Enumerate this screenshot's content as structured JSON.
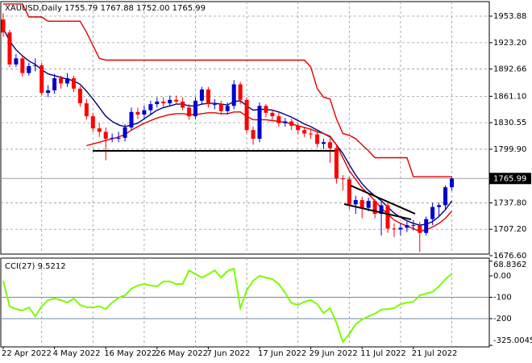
{
  "chart_data": [
    {
      "type": "candlestick",
      "title": "XAUUSD,Daily  1755.79 1767.88 1752.00 1765.99",
      "categories": [
        "22 Apr 2022",
        null,
        null,
        null,
        null,
        null,
        null,
        null,
        "4 May 2022",
        null,
        null,
        null,
        null,
        null,
        null,
        null,
        "16 May 2022",
        null,
        null,
        null,
        null,
        null,
        null,
        null,
        "26 May 2022",
        null,
        null,
        null,
        null,
        null,
        null,
        null,
        "7 Jun 2022",
        null,
        null,
        null,
        null,
        null,
        null,
        null,
        "17 Jun 2022",
        null,
        null,
        null,
        null,
        null,
        null,
        null,
        "29 Jun 2022",
        null,
        null,
        null,
        null,
        null,
        null,
        null,
        "11 Jul 2022",
        null,
        null,
        null,
        null,
        null,
        null,
        null,
        "21 Jul 2022",
        null,
        null,
        null,
        null,
        null,
        null
      ],
      "open": [
        1950,
        1935,
        1898,
        1905,
        1888,
        1896,
        1897,
        1865,
        1868,
        1882,
        1876,
        1882,
        1870,
        1853,
        1838,
        1824,
        1820,
        1812,
        1813,
        1813,
        1825,
        1843,
        1840,
        1845,
        1852,
        1855,
        1853,
        1857,
        1855,
        1848,
        1838,
        1856,
        1869,
        1852,
        1852,
        1844,
        1850,
        1875,
        1857,
        1822,
        1812,
        1850,
        1842,
        1838,
        1830,
        1832,
        1827,
        1822,
        1818,
        1817,
        1806,
        1808,
        1801,
        1766,
        1765,
        1736,
        1741,
        1732,
        1740,
        1725,
        1735,
        1708,
        1707,
        1709,
        1712,
        1712,
        1703,
        1719,
        1733,
        1735,
        1755.79
      ],
      "high": [
        1957,
        1938,
        1910,
        1908,
        1900,
        1905,
        1900,
        1874,
        1887,
        1885,
        1888,
        1885,
        1873,
        1858,
        1842,
        1830,
        1825,
        1818,
        1820,
        1829,
        1848,
        1848,
        1850,
        1856,
        1860,
        1860,
        1862,
        1862,
        1860,
        1852,
        1860,
        1872,
        1872,
        1858,
        1856,
        1854,
        1880,
        1878,
        1860,
        1826,
        1854,
        1852,
        1846,
        1842,
        1836,
        1835,
        1830,
        1826,
        1824,
        1820,
        1812,
        1812,
        1805,
        1770,
        1768,
        1746,
        1745,
        1744,
        1742,
        1739,
        1738,
        1714,
        1714,
        1716,
        1718,
        1716,
        1722,
        1738,
        1738,
        1758,
        1767.88
      ],
      "low": [
        1930,
        1895,
        1895,
        1884,
        1885,
        1890,
        1862,
        1860,
        1864,
        1870,
        1872,
        1866,
        1849,
        1834,
        1820,
        1814,
        1787,
        1808,
        1808,
        1809,
        1822,
        1835,
        1836,
        1840,
        1848,
        1848,
        1850,
        1852,
        1845,
        1834,
        1835,
        1852,
        1848,
        1846,
        1840,
        1840,
        1846,
        1852,
        1818,
        1805,
        1808,
        1837,
        1834,
        1826,
        1826,
        1822,
        1817,
        1814,
        1812,
        1802,
        1800,
        1784,
        1760,
        1752,
        1730,
        1725,
        1720,
        1728,
        1720,
        1700,
        1703,
        1698,
        1700,
        1704,
        1706,
        1681,
        1700,
        1712,
        1722,
        1730,
        1752.0
      ],
      "close": [
        1935,
        1898,
        1905,
        1888,
        1896,
        1897,
        1865,
        1868,
        1882,
        1876,
        1882,
        1870,
        1853,
        1838,
        1824,
        1820,
        1812,
        1813,
        1813,
        1825,
        1843,
        1840,
        1845,
        1852,
        1855,
        1853,
        1857,
        1855,
        1848,
        1838,
        1856,
        1869,
        1852,
        1852,
        1844,
        1850,
        1875,
        1857,
        1822,
        1812,
        1850,
        1842,
        1838,
        1830,
        1832,
        1827,
        1822,
        1818,
        1817,
        1806,
        1808,
        1801,
        1766,
        1765,
        1736,
        1741,
        1732,
        1740,
        1725,
        1735,
        1708,
        1707,
        1709,
        1712,
        1712,
        1703,
        1719,
        1733,
        1735,
        1755.79,
        1765.99
      ],
      "up_color": "#0000cd",
      "down_color": "#ff0000",
      "series": [
        {
          "color": "#000080",
          "values": [
            1940,
            1925,
            1915,
            1908,
            1902,
            1898,
            1892,
            1887,
            1885,
            1883,
            1881,
            1879,
            1875,
            1867,
            1858,
            1848,
            1838,
            1832,
            1828,
            1826,
            1828,
            1830,
            1835,
            1840,
            1845,
            1848,
            1850,
            1852,
            1852,
            1850,
            1850,
            1852,
            1853,
            1853,
            1852,
            1851,
            1855,
            1856,
            1850,
            1845,
            1846,
            1846,
            1845,
            1843,
            1840,
            1837,
            1833,
            1829,
            1826,
            1822,
            1818,
            1814,
            1805,
            1795,
            1782,
            1770,
            1760,
            1752,
            1746,
            1740,
            1733,
            1726,
            1721,
            1717,
            1714,
            1712,
            1713,
            1716,
            1722,
            1730,
            1740
          ]
        },
        {
          "color": "#e00000",
          "values": [
            1968,
            1968,
            1968,
            1968,
            1953,
            1953,
            1953,
            1948,
            1948,
            1948,
            1948,
            1948,
            1948,
            1935,
            1920,
            1905,
            1903,
            1903,
            1903,
            1903,
            1903,
            1903,
            1903,
            1903,
            1903,
            1903,
            1903,
            1903,
            1903,
            1903,
            1903,
            1903,
            1903,
            1903,
            1903,
            1903,
            1903,
            1903,
            1903,
            1903,
            1903,
            1903,
            1903,
            1903,
            1903,
            1903,
            1903,
            1903,
            1895,
            1870,
            1860,
            1858,
            1835,
            1818,
            1816,
            1812,
            1805,
            1798,
            1790,
            1790,
            1790,
            1790,
            1790,
            1790,
            1768,
            1768,
            1768,
            1768,
            1768,
            1768,
            1768
          ]
        },
        {
          "color": "#e00000",
          "values": [
            null,
            null,
            null,
            null,
            null,
            null,
            null,
            null,
            null,
            null,
            null,
            null,
            null,
            1804,
            1806,
            1808,
            1810,
            1812,
            1814,
            1817,
            1822,
            1826,
            1830,
            1833,
            1836,
            1838,
            1840,
            1841,
            1841,
            1840,
            1840,
            1841,
            1842,
            1842,
            1841,
            1841,
            1843,
            1843,
            1838,
            1834,
            1834,
            1834,
            1833,
            1832,
            1831,
            1829,
            1827,
            1825,
            1823,
            1820,
            1818,
            1815,
            1805,
            1790,
            1775,
            1765,
            1755,
            1748,
            1740,
            1732,
            1725,
            1718,
            1714,
            1711,
            1708,
            1705,
            1706,
            1710,
            1714,
            1720,
            1728
          ]
        }
      ],
      "ylim": [
        1676.6,
        1970.7
      ],
      "yticks": [
        1953.88,
        {
          "value": 1923.2,
          "label": "1923.20"
        },
        1892.66,
        {
          "value": 1861.1,
          "label": "1861.10"
        },
        1830.55,
        {
          "value": 1799.9,
          "label": "1799.90"
        },
        {
          "value": 1737.8,
          "label": "1737.80"
        },
        {
          "value": 1707.2,
          "label": "1707.20"
        },
        {
          "value": 1676.6,
          "label": "1676.60"
        }
      ],
      "grid": true
    },
    {
      "type": "line",
      "title": "CCI(27) 9.5212",
      "series": [
        {
          "color": "#7cfc00",
          "values": [
            -23,
            -143,
            -155,
            -162,
            -147,
            -189,
            -143,
            -113,
            -106,
            -113,
            -125,
            -106,
            -136,
            -147,
            -147,
            -143,
            -155,
            -125,
            -102,
            -91,
            -60,
            -45,
            -38,
            -45,
            -49,
            -26,
            -26,
            -38,
            -38,
            26,
            8,
            -8,
            8,
            26,
            -8,
            23,
            34,
            -151,
            -68,
            -23,
            0,
            -8,
            -15,
            -38,
            -79,
            -128,
            -136,
            -121,
            -113,
            -132,
            -174,
            -151,
            -219,
            -309,
            -272,
            -226,
            -204,
            -189,
            -177,
            -158,
            -155,
            -151,
            -132,
            -125,
            -121,
            -91,
            -83,
            -75,
            -49,
            -15,
            9.5212
          ]
        }
      ],
      "ylim": [
        -325.0045,
        68.8362
      ],
      "yticks": [
        68.8362,
        {
          "value": 0,
          "label": "0.00"
        },
        -100,
        -200,
        -325.0045
      ],
      "levels": [
        -100,
        -200
      ],
      "level_color": "#6e8aa0"
    }
  ]
}
